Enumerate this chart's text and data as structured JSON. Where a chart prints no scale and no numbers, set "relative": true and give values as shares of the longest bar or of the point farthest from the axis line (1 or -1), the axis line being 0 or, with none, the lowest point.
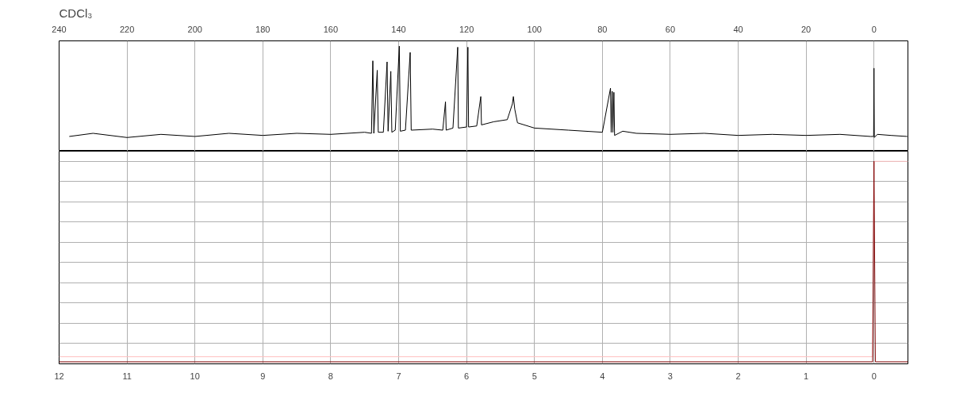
{
  "chart_data": [
    {
      "type": "line",
      "title": "CDCl₃",
      "relative": true,
      "grid": "x",
      "xlim": [
        240,
        -10
      ],
      "xticks": [
        240,
        220,
        200,
        180,
        160,
        140,
        120,
        100,
        80,
        60,
        40,
        20,
        0
      ],
      "series": [
        {
          "color": "#000000",
          "x": [
            237,
            230,
            220,
            210,
            200,
            190,
            180,
            170,
            160,
            150,
            148,
            147.6,
            147.3,
            146.3,
            146,
            144.5,
            143.4,
            143.1,
            142.3,
            142,
            141,
            139.8,
            139.5,
            138,
            136.6,
            136.3,
            130,
            127,
            126.2,
            126,
            124,
            122.6,
            122.4,
            120,
            119.6,
            119.4,
            117,
            115.8,
            115.6,
            112,
            108,
            106.5,
            106.2,
            105.8,
            105,
            100,
            90,
            80,
            77.6,
            77.4,
            77.1,
            76.9,
            76.6,
            76.4,
            74,
            70,
            60,
            50,
            40,
            30,
            20,
            10,
            1,
            0.1,
            0,
            -0.1,
            -1,
            -5,
            -9.8
          ],
          "values": [
            0.14,
            0.17,
            0.13,
            0.16,
            0.14,
            0.17,
            0.15,
            0.17,
            0.16,
            0.18,
            0.17,
            0.86,
            0.17,
            0.77,
            0.18,
            0.18,
            0.85,
            0.19,
            0.76,
            0.18,
            0.2,
            1.0,
            0.19,
            0.2,
            0.94,
            0.2,
            0.21,
            0.2,
            0.47,
            0.2,
            0.22,
            0.99,
            0.22,
            0.23,
            0.99,
            0.23,
            0.24,
            0.52,
            0.25,
            0.28,
            0.3,
            0.45,
            0.52,
            0.4,
            0.27,
            0.22,
            0.2,
            0.18,
            0.6,
            0.18,
            0.57,
            0.18,
            0.56,
            0.15,
            0.19,
            0.17,
            0.16,
            0.17,
            0.15,
            0.16,
            0.15,
            0.16,
            0.14,
            0.14,
            0.79,
            0.13,
            0.16,
            0.15,
            0.14
          ]
        }
      ]
    },
    {
      "type": "line",
      "relative": true,
      "grid": true,
      "xlim": [
        12,
        -0.5
      ],
      "xticks": [
        12,
        11,
        10,
        9,
        8,
        7,
        6,
        5,
        4,
        3,
        2,
        1,
        0
      ],
      "series": [
        {
          "color": "#ffc0c0",
          "x": [
            12,
            0.02,
            0,
            -0.5
          ],
          "values": [
            0.035,
            0.035,
            1,
            1
          ]
        },
        {
          "color": "#800000",
          "x": [
            12,
            0.02,
            0,
            -0.02,
            -0.5
          ],
          "values": [
            0.01,
            0.01,
            1,
            0.01,
            0.01
          ]
        }
      ]
    }
  ]
}
